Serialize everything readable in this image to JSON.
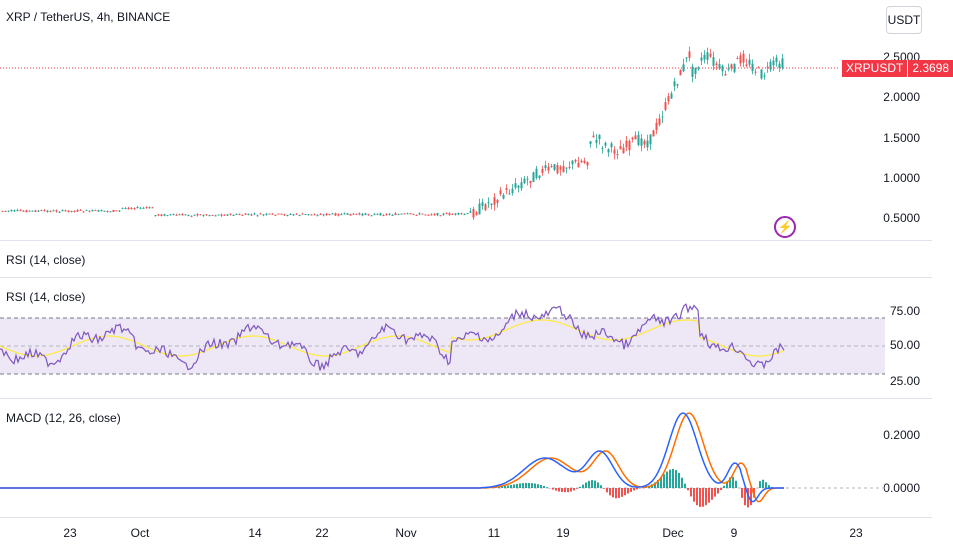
{
  "header": {
    "symbol_title": "XRP / TetherUS, 4h, BINANCE",
    "currency_button": "USDT"
  },
  "price_pane": {
    "axis_labels": [
      "2.5000",
      "2.0000",
      "1.5000",
      "1.0000",
      "0.5000"
    ],
    "tag_symbol": "XRPUSDT",
    "tag_price": "2.3698",
    "colors": {
      "up": "#26a69a",
      "down": "#ef5350",
      "last_price_line": "#f23645"
    },
    "flash_icon": "lightning-icon"
  },
  "rsi_collapsed": {
    "title": "RSI (14, close)"
  },
  "rsi_pane": {
    "title": "RSI (14, close)",
    "axis_labels": [
      "75.00",
      "50.00",
      "25.00"
    ],
    "colors": {
      "rsi": "#7e57c2",
      "ma": "#ffeb3b",
      "band": "#ede7f6"
    }
  },
  "macd_pane": {
    "title": "MACD (12, 26, close)",
    "axis_labels": [
      "0.2000",
      "0.0000"
    ],
    "colors": {
      "macd": "#2962ff",
      "signal": "#ff6d00",
      "hist_up": "#26a69a",
      "hist_down": "#ef5350"
    }
  },
  "time_axis": [
    "23",
    "Oct",
    "14",
    "22",
    "Nov",
    "11",
    "19",
    "Dec",
    "9",
    "23"
  ]
}
